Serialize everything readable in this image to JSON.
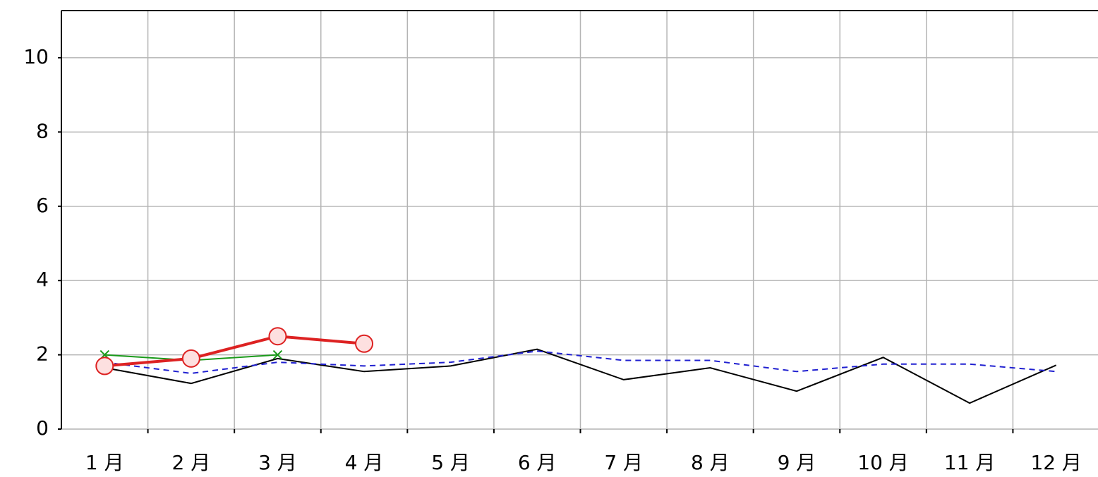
{
  "chart_data": {
    "type": "line",
    "categories": [
      "1 月",
      "2 月",
      "3 月",
      "4 月",
      "5 月",
      "6 月",
      "7 月",
      "8 月",
      "9 月",
      "10 月",
      "11 月",
      "12 月"
    ],
    "series": [
      {
        "color": "#000000",
        "style": "solid",
        "width": 2,
        "marker": "none",
        "values": [
          1.65,
          1.23,
          1.9,
          1.55,
          1.7,
          2.15,
          1.33,
          1.65,
          1.02,
          1.93,
          0.7,
          1.72
        ]
      },
      {
        "color": "#2020d0",
        "style": "dashed",
        "width": 2,
        "marker": "none",
        "values": [
          1.8,
          1.5,
          1.8,
          1.7,
          1.8,
          2.1,
          1.85,
          1.85,
          1.55,
          1.75,
          1.75,
          1.55
        ]
      },
      {
        "color": "#1a9a1a",
        "style": "solid",
        "width": 2,
        "marker": "x",
        "values": [
          2.0,
          1.85,
          2.0,
          null,
          null,
          null,
          null,
          null,
          null,
          null,
          null,
          null
        ]
      },
      {
        "color": "#dd2222",
        "style": "solid",
        "width": 4,
        "marker": "circle",
        "values": [
          1.7,
          1.9,
          2.5,
          2.3,
          null,
          null,
          null,
          null,
          null,
          null,
          null,
          null
        ]
      }
    ],
    "ylim": [
      0,
      11.27
    ],
    "yticks": [
      0,
      2,
      4,
      6,
      8,
      10
    ],
    "grid": true
  }
}
